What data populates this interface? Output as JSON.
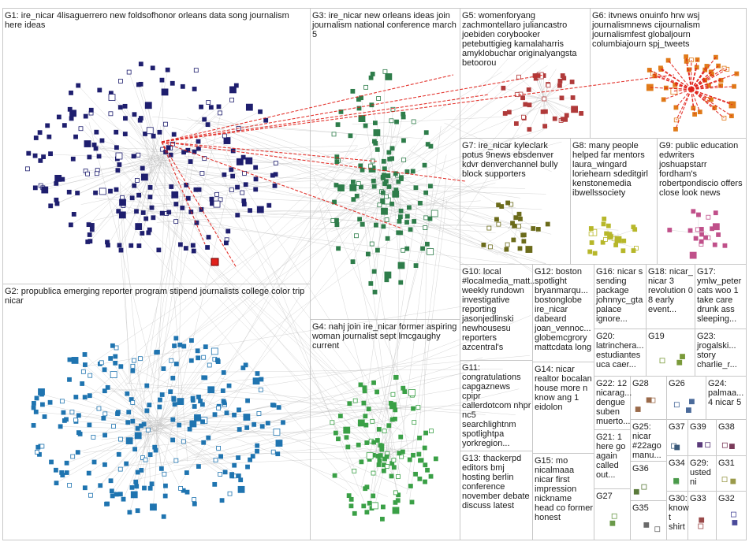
{
  "groups": [
    {
      "id": "G1",
      "label": "G1: ire_nicar 4lisaguerrero new foldsofhonor orleans data song journalism here ideas",
      "color": "#1e1e6e"
    },
    {
      "id": "G2",
      "label": "G2: propublica emerging reporter program stipend journalists college color trip nicar",
      "color": "#1f74b0"
    },
    {
      "id": "G3",
      "label": "G3: ire_nicar new orleans ideas join journalism national conference march 5",
      "color": "#2e7d4a"
    },
    {
      "id": "G4",
      "label": "G4: nahj join ire_nicar former aspiring woman journalist sept lmcgaughy current",
      "color": "#3aa046"
    },
    {
      "id": "G5",
      "label": "G5: womenforyang zachmontellaro juliancastro joebiden corybooker petebuttigieg kamalaharris amyklobuchar originalyangsta betoorou",
      "color": "#b03a3a"
    },
    {
      "id": "G6",
      "label": "G6: itvnews onuinfo hrw wsj journalismnews cijournalism journalismfest globaljourn columbiajourn spj_tweets",
      "color": "#e07b1a"
    },
    {
      "id": "G7",
      "label": "G7: ire_nicar kyleclark potus 9news ebsdenver kdvr denverchannel bully block supporters",
      "color": "#6b6b1a"
    },
    {
      "id": "G8",
      "label": "G8: many people helped far mentors laura_wingard loriehearn sdeditgirl kenstonemedia ibwellssociety",
      "color": "#b7b72a"
    },
    {
      "id": "G9",
      "label": "G9: public education edwriters joshuapstarr fordham's robertpondiscio offers close look news",
      "color": "#c0508a"
    },
    {
      "id": "G10",
      "label": "G10: local #localmedia_matt... weekly rundown investigative reporting jasonjedlinski newhousesu reporters azcentral's",
      "color": "#7b3fa0"
    },
    {
      "id": "G11",
      "label": "G11: congratulations capgaznews cpipr callerdotcom nhpr nc5 searchlightnm spotlightpa yorkregion...",
      "color": "#5a7ab0"
    },
    {
      "id": "G12",
      "label": "G12: boston spotlight bryanmarqu... bostonglobe ire_nicar dabeard joan_vennoc... globemcgrory mattcdata long",
      "color": "#3a8a8a"
    },
    {
      "id": "G13",
      "label": "G13: thackerpd editors bmj hosting berlin conference november debate discuss latest",
      "color": "#8a5a2a"
    },
    {
      "id": "G14",
      "label": "G14: nicar realtor bocalan house more n know ang 1 eidolon",
      "color": "#5a5a9a"
    },
    {
      "id": "G15",
      "label": "G15: mo nicalmaaa nicar first impression nickname head co former honest",
      "color": "#9a4a4a"
    },
    {
      "id": "G16",
      "label": "G16: nicar s sending package johnnyc_gta palace ignore...",
      "color": "#4a8a4a"
    },
    {
      "id": "G17",
      "label": "G17: ymlw_peter cats woo 1 take care drunk ass sleeping...",
      "color": "#9a7a2a"
    },
    {
      "id": "G18",
      "label": "G18: nicar_ nicar 3 revolution 0 8 early event...",
      "color": "#6a4a9a"
    },
    {
      "id": "G19",
      "label": "G19",
      "color": "#7a9a3a"
    },
    {
      "id": "G20",
      "label": "G20: latrinchera... estudiantes uca caer...",
      "color": "#3a7a9a"
    },
    {
      "id": "G21",
      "label": "G21: 1 here go again called out...",
      "color": "#9a3a7a"
    },
    {
      "id": "G22",
      "label": "G22: 12 nicarag... dengue suben muerto...",
      "color": "#3a9a7a"
    },
    {
      "id": "G23",
      "label": "G23: jrogalski... story charlie_r...",
      "color": "#7a3a3a"
    },
    {
      "id": "G24",
      "label": "G24: palmaa... 4 nicar 5",
      "color": "#3a3a7a"
    },
    {
      "id": "G25",
      "label": "G25: nicar #22ago manu...",
      "color": "#7a7a3a"
    },
    {
      "id": "G26",
      "label": "G26",
      "color": "#4a6a9a"
    },
    {
      "id": "G27",
      "label": "G27",
      "color": "#6a9a4a"
    },
    {
      "id": "G28",
      "label": "G28",
      "color": "#9a6a4a"
    },
    {
      "id": "G29",
      "label": "G29: usted ni",
      "color": "#4a9a9a"
    },
    {
      "id": "G30",
      "label": "G30: know t shirt",
      "color": "#9a4a9a"
    },
    {
      "id": "G31",
      "label": "G31",
      "color": "#9a9a4a"
    },
    {
      "id": "G32",
      "label": "G32",
      "color": "#4a4a9a"
    },
    {
      "id": "G33",
      "label": "G33",
      "color": "#9a4a4a"
    },
    {
      "id": "G34",
      "label": "G34",
      "color": "#4a9a4a"
    },
    {
      "id": "G35",
      "label": "G35",
      "color": "#6a6a6a"
    },
    {
      "id": "G36",
      "label": "G36",
      "color": "#5a7a3a"
    },
    {
      "id": "G37",
      "label": "G37",
      "color": "#3a5a7a"
    },
    {
      "id": "G38",
      "label": "G38",
      "color": "#7a3a5a"
    },
    {
      "id": "G39",
      "label": "G39",
      "color": "#5a3a7a"
    }
  ]
}
